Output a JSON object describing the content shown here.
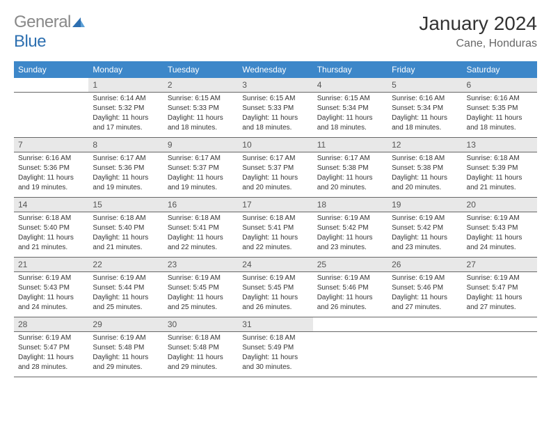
{
  "logo": {
    "word1": "General",
    "word2": "Blue"
  },
  "title": "January 2024",
  "location": "Cane, Honduras",
  "colors": {
    "header_bg": "#3d87c9",
    "header_text": "#ffffff",
    "daynum_bg": "#e8e8e8",
    "daynum_text": "#555555",
    "info_text": "#333333",
    "border": "#666666",
    "page_bg": "#ffffff",
    "logo_blue": "#2d6fb0",
    "title_color": "#333333",
    "location_color": "#666666"
  },
  "typography": {
    "title_fontsize": 28,
    "location_fontsize": 16,
    "header_fontsize": 12,
    "daynum_fontsize": 12,
    "info_fontsize": 10
  },
  "weekdays": [
    "Sunday",
    "Monday",
    "Tuesday",
    "Wednesday",
    "Thursday",
    "Friday",
    "Saturday"
  ],
  "weeks": [
    [
      null,
      {
        "n": "1",
        "sunrise": "Sunrise: 6:14 AM",
        "sunset": "Sunset: 5:32 PM",
        "d1": "Daylight: 11 hours",
        "d2": "and 17 minutes."
      },
      {
        "n": "2",
        "sunrise": "Sunrise: 6:15 AM",
        "sunset": "Sunset: 5:33 PM",
        "d1": "Daylight: 11 hours",
        "d2": "and 18 minutes."
      },
      {
        "n": "3",
        "sunrise": "Sunrise: 6:15 AM",
        "sunset": "Sunset: 5:33 PM",
        "d1": "Daylight: 11 hours",
        "d2": "and 18 minutes."
      },
      {
        "n": "4",
        "sunrise": "Sunrise: 6:15 AM",
        "sunset": "Sunset: 5:34 PM",
        "d1": "Daylight: 11 hours",
        "d2": "and 18 minutes."
      },
      {
        "n": "5",
        "sunrise": "Sunrise: 6:16 AM",
        "sunset": "Sunset: 5:34 PM",
        "d1": "Daylight: 11 hours",
        "d2": "and 18 minutes."
      },
      {
        "n": "6",
        "sunrise": "Sunrise: 6:16 AM",
        "sunset": "Sunset: 5:35 PM",
        "d1": "Daylight: 11 hours",
        "d2": "and 18 minutes."
      }
    ],
    [
      {
        "n": "7",
        "sunrise": "Sunrise: 6:16 AM",
        "sunset": "Sunset: 5:36 PM",
        "d1": "Daylight: 11 hours",
        "d2": "and 19 minutes."
      },
      {
        "n": "8",
        "sunrise": "Sunrise: 6:17 AM",
        "sunset": "Sunset: 5:36 PM",
        "d1": "Daylight: 11 hours",
        "d2": "and 19 minutes."
      },
      {
        "n": "9",
        "sunrise": "Sunrise: 6:17 AM",
        "sunset": "Sunset: 5:37 PM",
        "d1": "Daylight: 11 hours",
        "d2": "and 19 minutes."
      },
      {
        "n": "10",
        "sunrise": "Sunrise: 6:17 AM",
        "sunset": "Sunset: 5:37 PM",
        "d1": "Daylight: 11 hours",
        "d2": "and 20 minutes."
      },
      {
        "n": "11",
        "sunrise": "Sunrise: 6:17 AM",
        "sunset": "Sunset: 5:38 PM",
        "d1": "Daylight: 11 hours",
        "d2": "and 20 minutes."
      },
      {
        "n": "12",
        "sunrise": "Sunrise: 6:18 AM",
        "sunset": "Sunset: 5:38 PM",
        "d1": "Daylight: 11 hours",
        "d2": "and 20 minutes."
      },
      {
        "n": "13",
        "sunrise": "Sunrise: 6:18 AM",
        "sunset": "Sunset: 5:39 PM",
        "d1": "Daylight: 11 hours",
        "d2": "and 21 minutes."
      }
    ],
    [
      {
        "n": "14",
        "sunrise": "Sunrise: 6:18 AM",
        "sunset": "Sunset: 5:40 PM",
        "d1": "Daylight: 11 hours",
        "d2": "and 21 minutes."
      },
      {
        "n": "15",
        "sunrise": "Sunrise: 6:18 AM",
        "sunset": "Sunset: 5:40 PM",
        "d1": "Daylight: 11 hours",
        "d2": "and 21 minutes."
      },
      {
        "n": "16",
        "sunrise": "Sunrise: 6:18 AM",
        "sunset": "Sunset: 5:41 PM",
        "d1": "Daylight: 11 hours",
        "d2": "and 22 minutes."
      },
      {
        "n": "17",
        "sunrise": "Sunrise: 6:18 AM",
        "sunset": "Sunset: 5:41 PM",
        "d1": "Daylight: 11 hours",
        "d2": "and 22 minutes."
      },
      {
        "n": "18",
        "sunrise": "Sunrise: 6:19 AM",
        "sunset": "Sunset: 5:42 PM",
        "d1": "Daylight: 11 hours",
        "d2": "and 23 minutes."
      },
      {
        "n": "19",
        "sunrise": "Sunrise: 6:19 AM",
        "sunset": "Sunset: 5:42 PM",
        "d1": "Daylight: 11 hours",
        "d2": "and 23 minutes."
      },
      {
        "n": "20",
        "sunrise": "Sunrise: 6:19 AM",
        "sunset": "Sunset: 5:43 PM",
        "d1": "Daylight: 11 hours",
        "d2": "and 24 minutes."
      }
    ],
    [
      {
        "n": "21",
        "sunrise": "Sunrise: 6:19 AM",
        "sunset": "Sunset: 5:43 PM",
        "d1": "Daylight: 11 hours",
        "d2": "and 24 minutes."
      },
      {
        "n": "22",
        "sunrise": "Sunrise: 6:19 AM",
        "sunset": "Sunset: 5:44 PM",
        "d1": "Daylight: 11 hours",
        "d2": "and 25 minutes."
      },
      {
        "n": "23",
        "sunrise": "Sunrise: 6:19 AM",
        "sunset": "Sunset: 5:45 PM",
        "d1": "Daylight: 11 hours",
        "d2": "and 25 minutes."
      },
      {
        "n": "24",
        "sunrise": "Sunrise: 6:19 AM",
        "sunset": "Sunset: 5:45 PM",
        "d1": "Daylight: 11 hours",
        "d2": "and 26 minutes."
      },
      {
        "n": "25",
        "sunrise": "Sunrise: 6:19 AM",
        "sunset": "Sunset: 5:46 PM",
        "d1": "Daylight: 11 hours",
        "d2": "and 26 minutes."
      },
      {
        "n": "26",
        "sunrise": "Sunrise: 6:19 AM",
        "sunset": "Sunset: 5:46 PM",
        "d1": "Daylight: 11 hours",
        "d2": "and 27 minutes."
      },
      {
        "n": "27",
        "sunrise": "Sunrise: 6:19 AM",
        "sunset": "Sunset: 5:47 PM",
        "d1": "Daylight: 11 hours",
        "d2": "and 27 minutes."
      }
    ],
    [
      {
        "n": "28",
        "sunrise": "Sunrise: 6:19 AM",
        "sunset": "Sunset: 5:47 PM",
        "d1": "Daylight: 11 hours",
        "d2": "and 28 minutes."
      },
      {
        "n": "29",
        "sunrise": "Sunrise: 6:19 AM",
        "sunset": "Sunset: 5:48 PM",
        "d1": "Daylight: 11 hours",
        "d2": "and 29 minutes."
      },
      {
        "n": "30",
        "sunrise": "Sunrise: 6:18 AM",
        "sunset": "Sunset: 5:48 PM",
        "d1": "Daylight: 11 hours",
        "d2": "and 29 minutes."
      },
      {
        "n": "31",
        "sunrise": "Sunrise: 6:18 AM",
        "sunset": "Sunset: 5:49 PM",
        "d1": "Daylight: 11 hours",
        "d2": "and 30 minutes."
      },
      null,
      null,
      null
    ]
  ]
}
